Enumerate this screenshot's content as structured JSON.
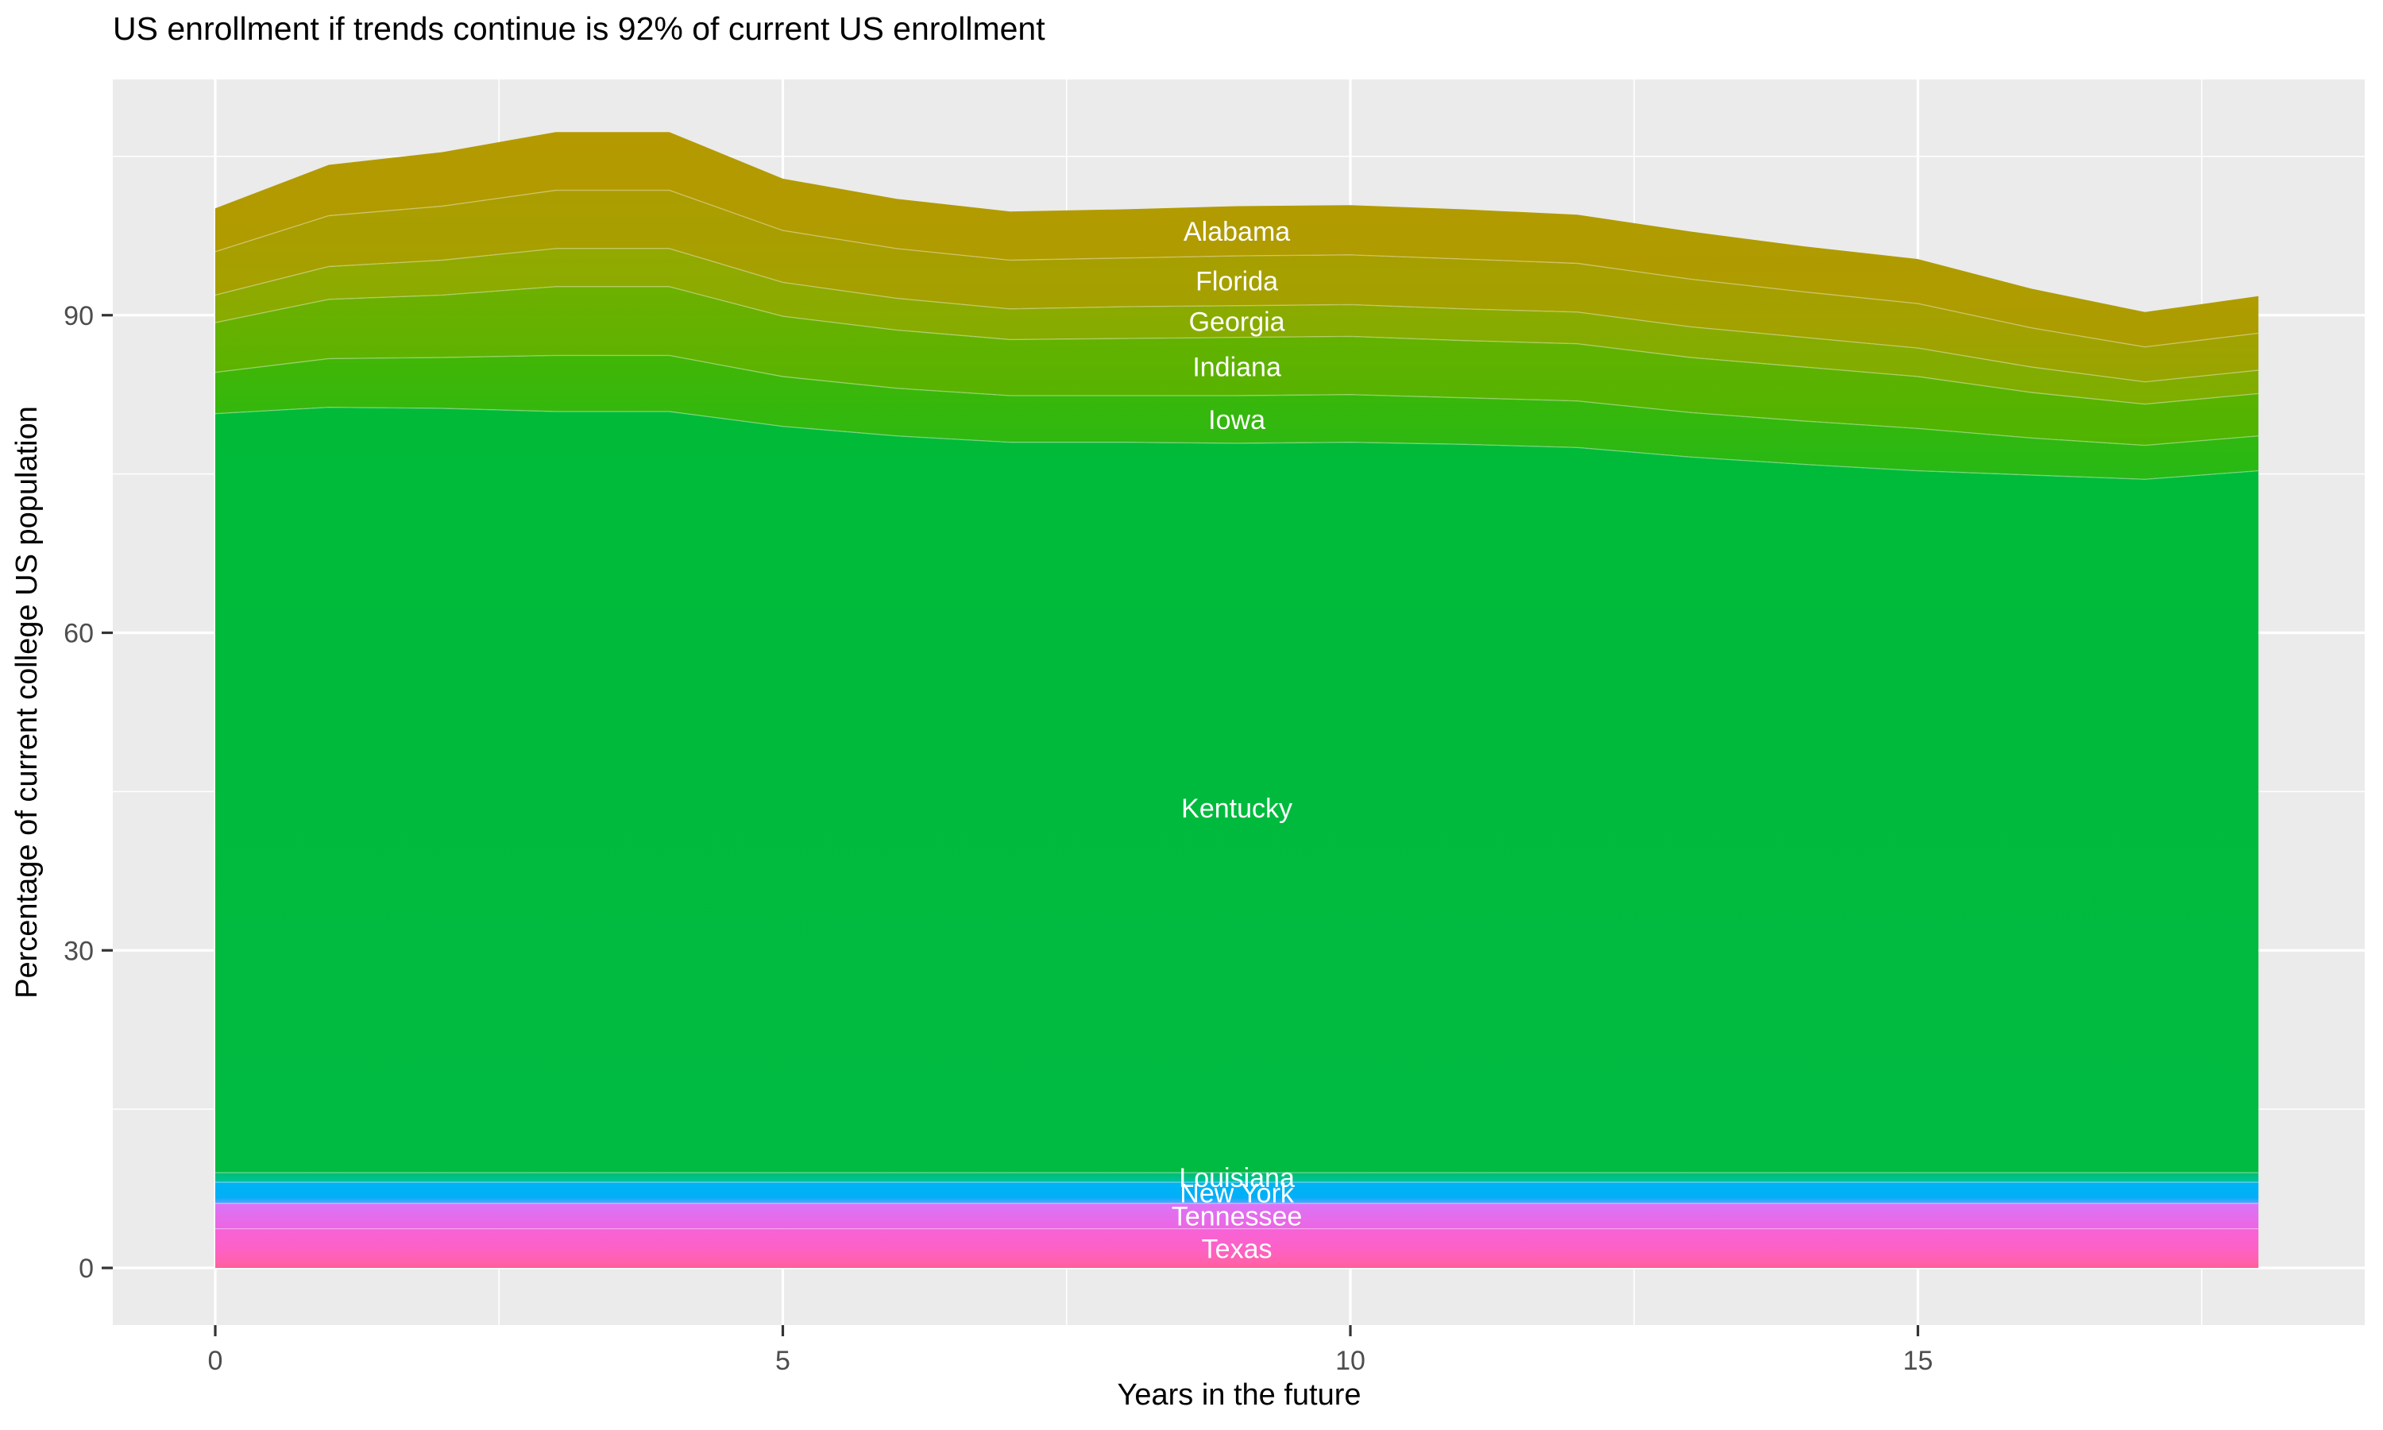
{
  "chart_data": {
    "type": "area",
    "variant": "stacked_area",
    "title": "US enrollment if trends continue is 92% of current US enrollment",
    "xlabel": "Years in the future",
    "ylabel": "Percentage of current college US population",
    "x": [
      0,
      1,
      2,
      3,
      4,
      5,
      6,
      7,
      8,
      9,
      10,
      11,
      12,
      13,
      14,
      15,
      16,
      17,
      18
    ],
    "x_ticks": [
      0,
      5,
      10,
      15
    ],
    "y_ticks": [
      0,
      30,
      60,
      90
    ],
    "x_minor_ticks": [
      2.5,
      7.5,
      12.5,
      17.5
    ],
    "y_minor_ticks": [
      15,
      45,
      75,
      105
    ],
    "xlim": [
      -0.9,
      19.05
    ],
    "ylim": [
      -5.2,
      112.3
    ],
    "grid": "on",
    "legend": "none (bands labeled directly on chart in white text)",
    "panel_background": "#EBEBEB",
    "gridline_color": "#FFFFFF",
    "tick_color": "#333333",
    "tick_label_color": "#4D4D4D",
    "label_text_color": "#FFFFFF",
    "total_top_curve": [
      100.0,
      104.2,
      105.3,
      107.3,
      107.3,
      102.9,
      101.0,
      99.8,
      99.9,
      100.3,
      100.4,
      100.0,
      99.4,
      97.8,
      96.3,
      94.8,
      92.4,
      90.3,
      91.8
    ],
    "series": [
      {
        "name": "Alabama",
        "color": "#B09B00",
        "gradient": [
          {
            "o": 0,
            "c": "#B49A00"
          },
          {
            "o": 1,
            "c": "#AC9C00"
          }
        ],
        "values": [
          4.1,
          4.8,
          5.1,
          5.5,
          5.5,
          4.9,
          4.7,
          4.6,
          4.6,
          4.7,
          4.7,
          4.7,
          4.6,
          4.5,
          4.3,
          4.2,
          3.7,
          3.3,
          3.5
        ]
      },
      {
        "name": "Florida",
        "color": "#A5A000",
        "gradient": [
          {
            "o": 0,
            "c": "#AB9D00"
          },
          {
            "o": 0.7,
            "c": "#A3A100"
          },
          {
            "o": 1,
            "c": "#97A500"
          }
        ],
        "values": [
          4.1,
          4.8,
          5.1,
          5.5,
          5.5,
          4.9,
          4.7,
          4.6,
          4.6,
          4.7,
          4.7,
          4.7,
          4.6,
          4.5,
          4.3,
          4.2,
          3.7,
          3.3,
          3.5
        ]
      },
      {
        "name": "Georgia",
        "color": "#8AAB00",
        "gradient": [
          {
            "o": 0,
            "c": "#92A900"
          },
          {
            "o": 1,
            "c": "#7EAD00"
          }
        ],
        "values": [
          2.6,
          3.1,
          3.3,
          3.6,
          3.6,
          3.2,
          3.0,
          2.9,
          3.0,
          3.0,
          3.0,
          3.0,
          3.0,
          2.9,
          2.8,
          2.7,
          2.4,
          2.1,
          2.2
        ]
      },
      {
        "name": "Indiana",
        "color": "#5DB200",
        "gradient": [
          {
            "o": 0,
            "c": "#6DB000"
          },
          {
            "o": 1,
            "c": "#4EB400"
          }
        ],
        "values": [
          4.7,
          5.6,
          5.9,
          6.5,
          6.5,
          5.7,
          5.5,
          5.3,
          5.4,
          5.5,
          5.5,
          5.4,
          5.4,
          5.2,
          5.1,
          4.9,
          4.3,
          3.9,
          4.0
        ]
      },
      {
        "name": "Iowa",
        "color": "#33B70B",
        "gradient": [
          {
            "o": 0,
            "c": "#41B606"
          },
          {
            "o": 1,
            "c": "#27B915"
          }
        ],
        "values": [
          3.9,
          4.6,
          4.8,
          5.3,
          5.3,
          4.7,
          4.5,
          4.4,
          4.4,
          4.5,
          4.5,
          4.4,
          4.4,
          4.2,
          4.1,
          4.0,
          3.5,
          3.2,
          3.3
        ]
      },
      {
        "name": "Kentucky",
        "color": "#00BA38",
        "gradient": [
          {
            "o": 0,
            "c": "#00BA38"
          },
          {
            "o": 1,
            "c": "#00BB42"
          }
        ],
        "values": [
          71.7,
          72.3,
          72.2,
          71.9,
          71.9,
          70.5,
          69.6,
          69.0,
          69.0,
          68.9,
          69.0,
          68.8,
          68.5,
          67.6,
          66.9,
          66.3,
          65.9,
          65.5,
          66.3
        ]
      },
      {
        "name": "Louisiana",
        "color": "#00BF7E",
        "gradient": [
          {
            "o": 0,
            "c": "#00BE6E"
          },
          {
            "o": 1,
            "c": "#00C1A0"
          }
        ],
        "values": [
          0.9,
          0.9,
          0.9,
          0.9,
          0.9,
          0.9,
          0.9,
          0.9,
          0.9,
          0.9,
          0.9,
          0.9,
          0.9,
          0.9,
          0.9,
          0.9,
          0.9,
          0.9,
          0.9
        ]
      },
      {
        "name": "New York",
        "color": "#00B2F6",
        "gradient": [
          {
            "o": 0,
            "c": "#00B3F5"
          },
          {
            "o": 0.72,
            "c": "#00AFF8"
          },
          {
            "o": 1,
            "c": "#63A0FF"
          }
        ],
        "values": [
          2.0,
          2.0,
          2.0,
          2.0,
          2.0,
          2.0,
          2.0,
          2.0,
          2.0,
          2.0,
          2.0,
          2.0,
          2.0,
          2.0,
          2.0,
          2.0,
          2.0,
          2.0,
          2.0
        ]
      },
      {
        "name": "Tennessee",
        "color": "#E26EF0",
        "gradient": [
          {
            "o": 0,
            "c": "#D975F6"
          },
          {
            "o": 1,
            "c": "#ED65E2"
          }
        ],
        "values": [
          2.4,
          2.4,
          2.4,
          2.4,
          2.4,
          2.4,
          2.4,
          2.4,
          2.4,
          2.4,
          2.4,
          2.4,
          2.4,
          2.4,
          2.4,
          2.4,
          2.4,
          2.4,
          2.4
        ]
      },
      {
        "name": "Texas",
        "color": "#FC61C4",
        "gradient": [
          {
            "o": 0,
            "c": "#F662D8"
          },
          {
            "o": 0.5,
            "c": "#FD61C6"
          },
          {
            "o": 0.85,
            "c": "#FF61AC"
          },
          {
            "o": 1,
            "c": "#FF5F96"
          }
        ],
        "values": [
          3.7,
          3.7,
          3.7,
          3.7,
          3.7,
          3.7,
          3.7,
          3.7,
          3.7,
          3.7,
          3.7,
          3.7,
          3.7,
          3.7,
          3.7,
          3.7,
          3.7,
          3.7,
          3.7
        ]
      }
    ],
    "band_label_x": 9,
    "annotation": "Bands stacked bottom-to-top: Texas, Tennessee, New York, Louisiana, Kentucky, Iowa, Indiana, Georgia, Florida, Alabama. Total at year 18 is 92% of current enrollment."
  }
}
